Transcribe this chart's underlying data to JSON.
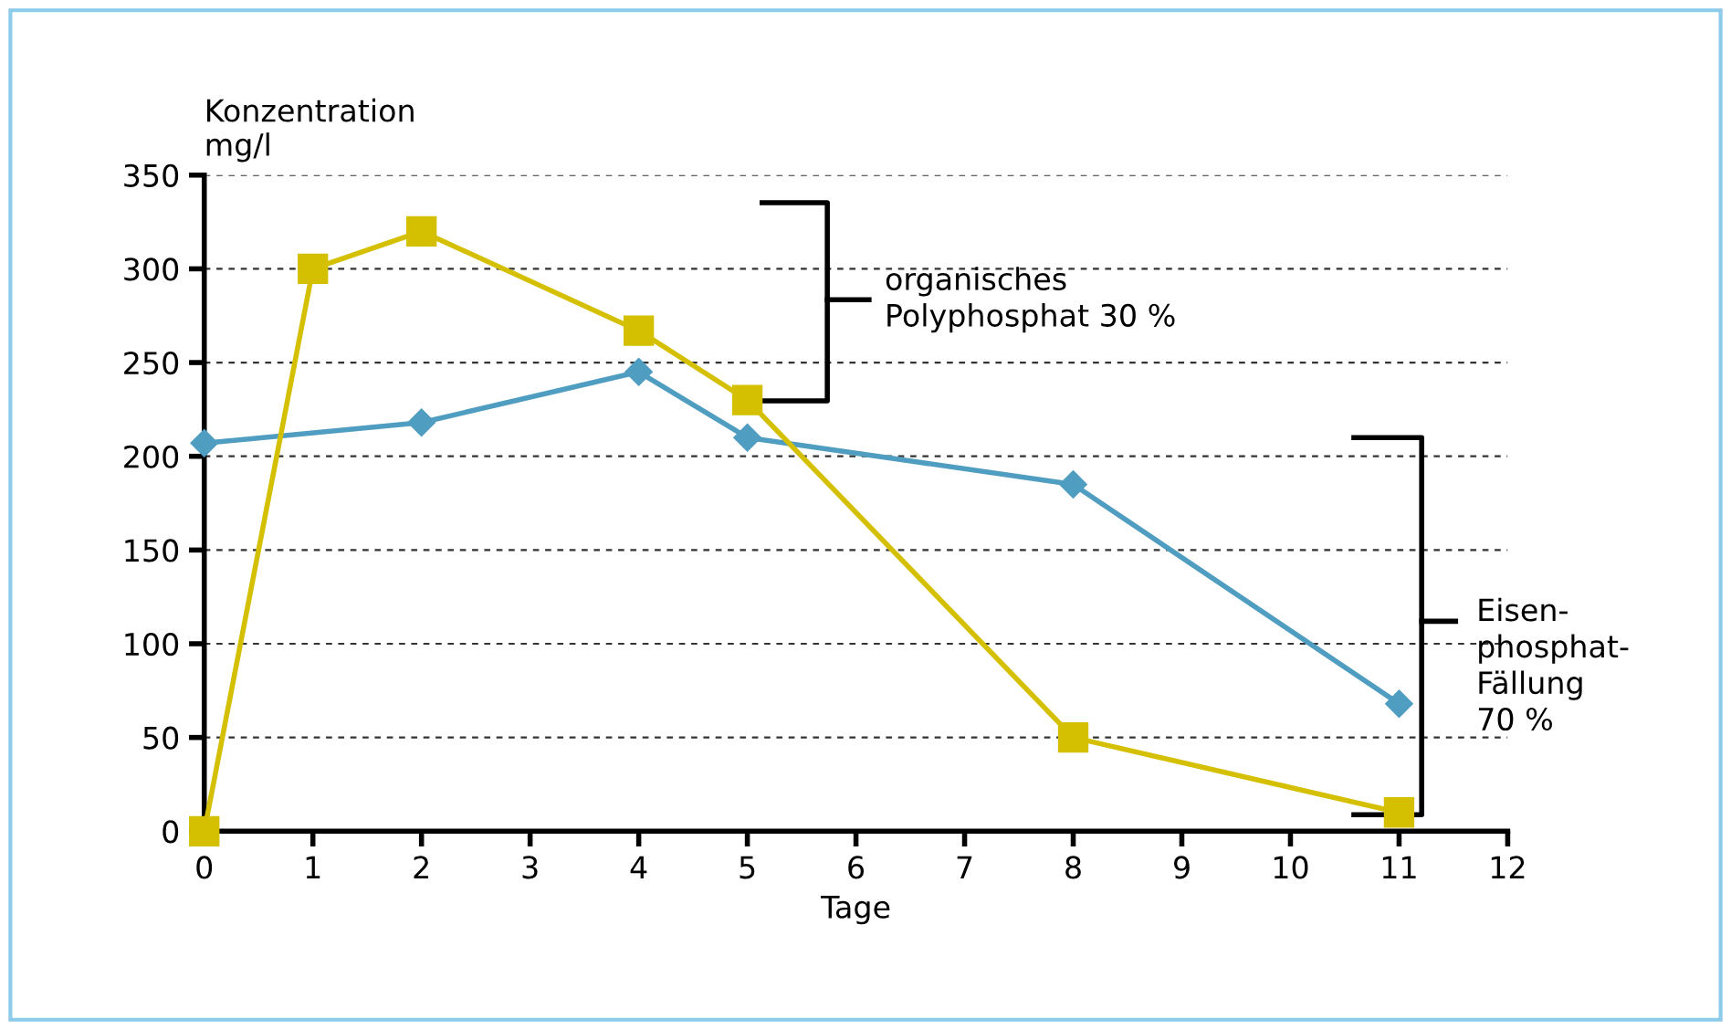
{
  "chart_data": {
    "type": "line",
    "xlabel": "Tage",
    "ylabel": "Konzentration\nmg/l",
    "xlim": [
      0,
      12
    ],
    "xticks": [
      0,
      1,
      2,
      3,
      4,
      5,
      6,
      7,
      8,
      9,
      10,
      11,
      12
    ],
    "ylim": [
      0,
      350
    ],
    "yticks": [
      0,
      50,
      100,
      150,
      200,
      250,
      300,
      350
    ],
    "grid": "y",
    "legend": false,
    "line_style": "solid",
    "series": [
      {
        "color": "#4f9dc0",
        "marker": "diamond",
        "x": [
          0,
          2,
          4,
          5,
          8,
          11
        ],
        "values": [
          207,
          218,
          245,
          210,
          185,
          68
        ]
      },
      {
        "color": "#d4c000",
        "marker": "square",
        "x": [
          0,
          1,
          2,
          4,
          5,
          8,
          11
        ],
        "values": [
          0,
          300,
          320,
          267,
          230,
          50,
          10
        ]
      }
    ],
    "annotations": [
      "organisches\nPolyphosphat 30 %",
      "Eisen-\nphosphat-\nFällung\n70 %"
    ]
  }
}
